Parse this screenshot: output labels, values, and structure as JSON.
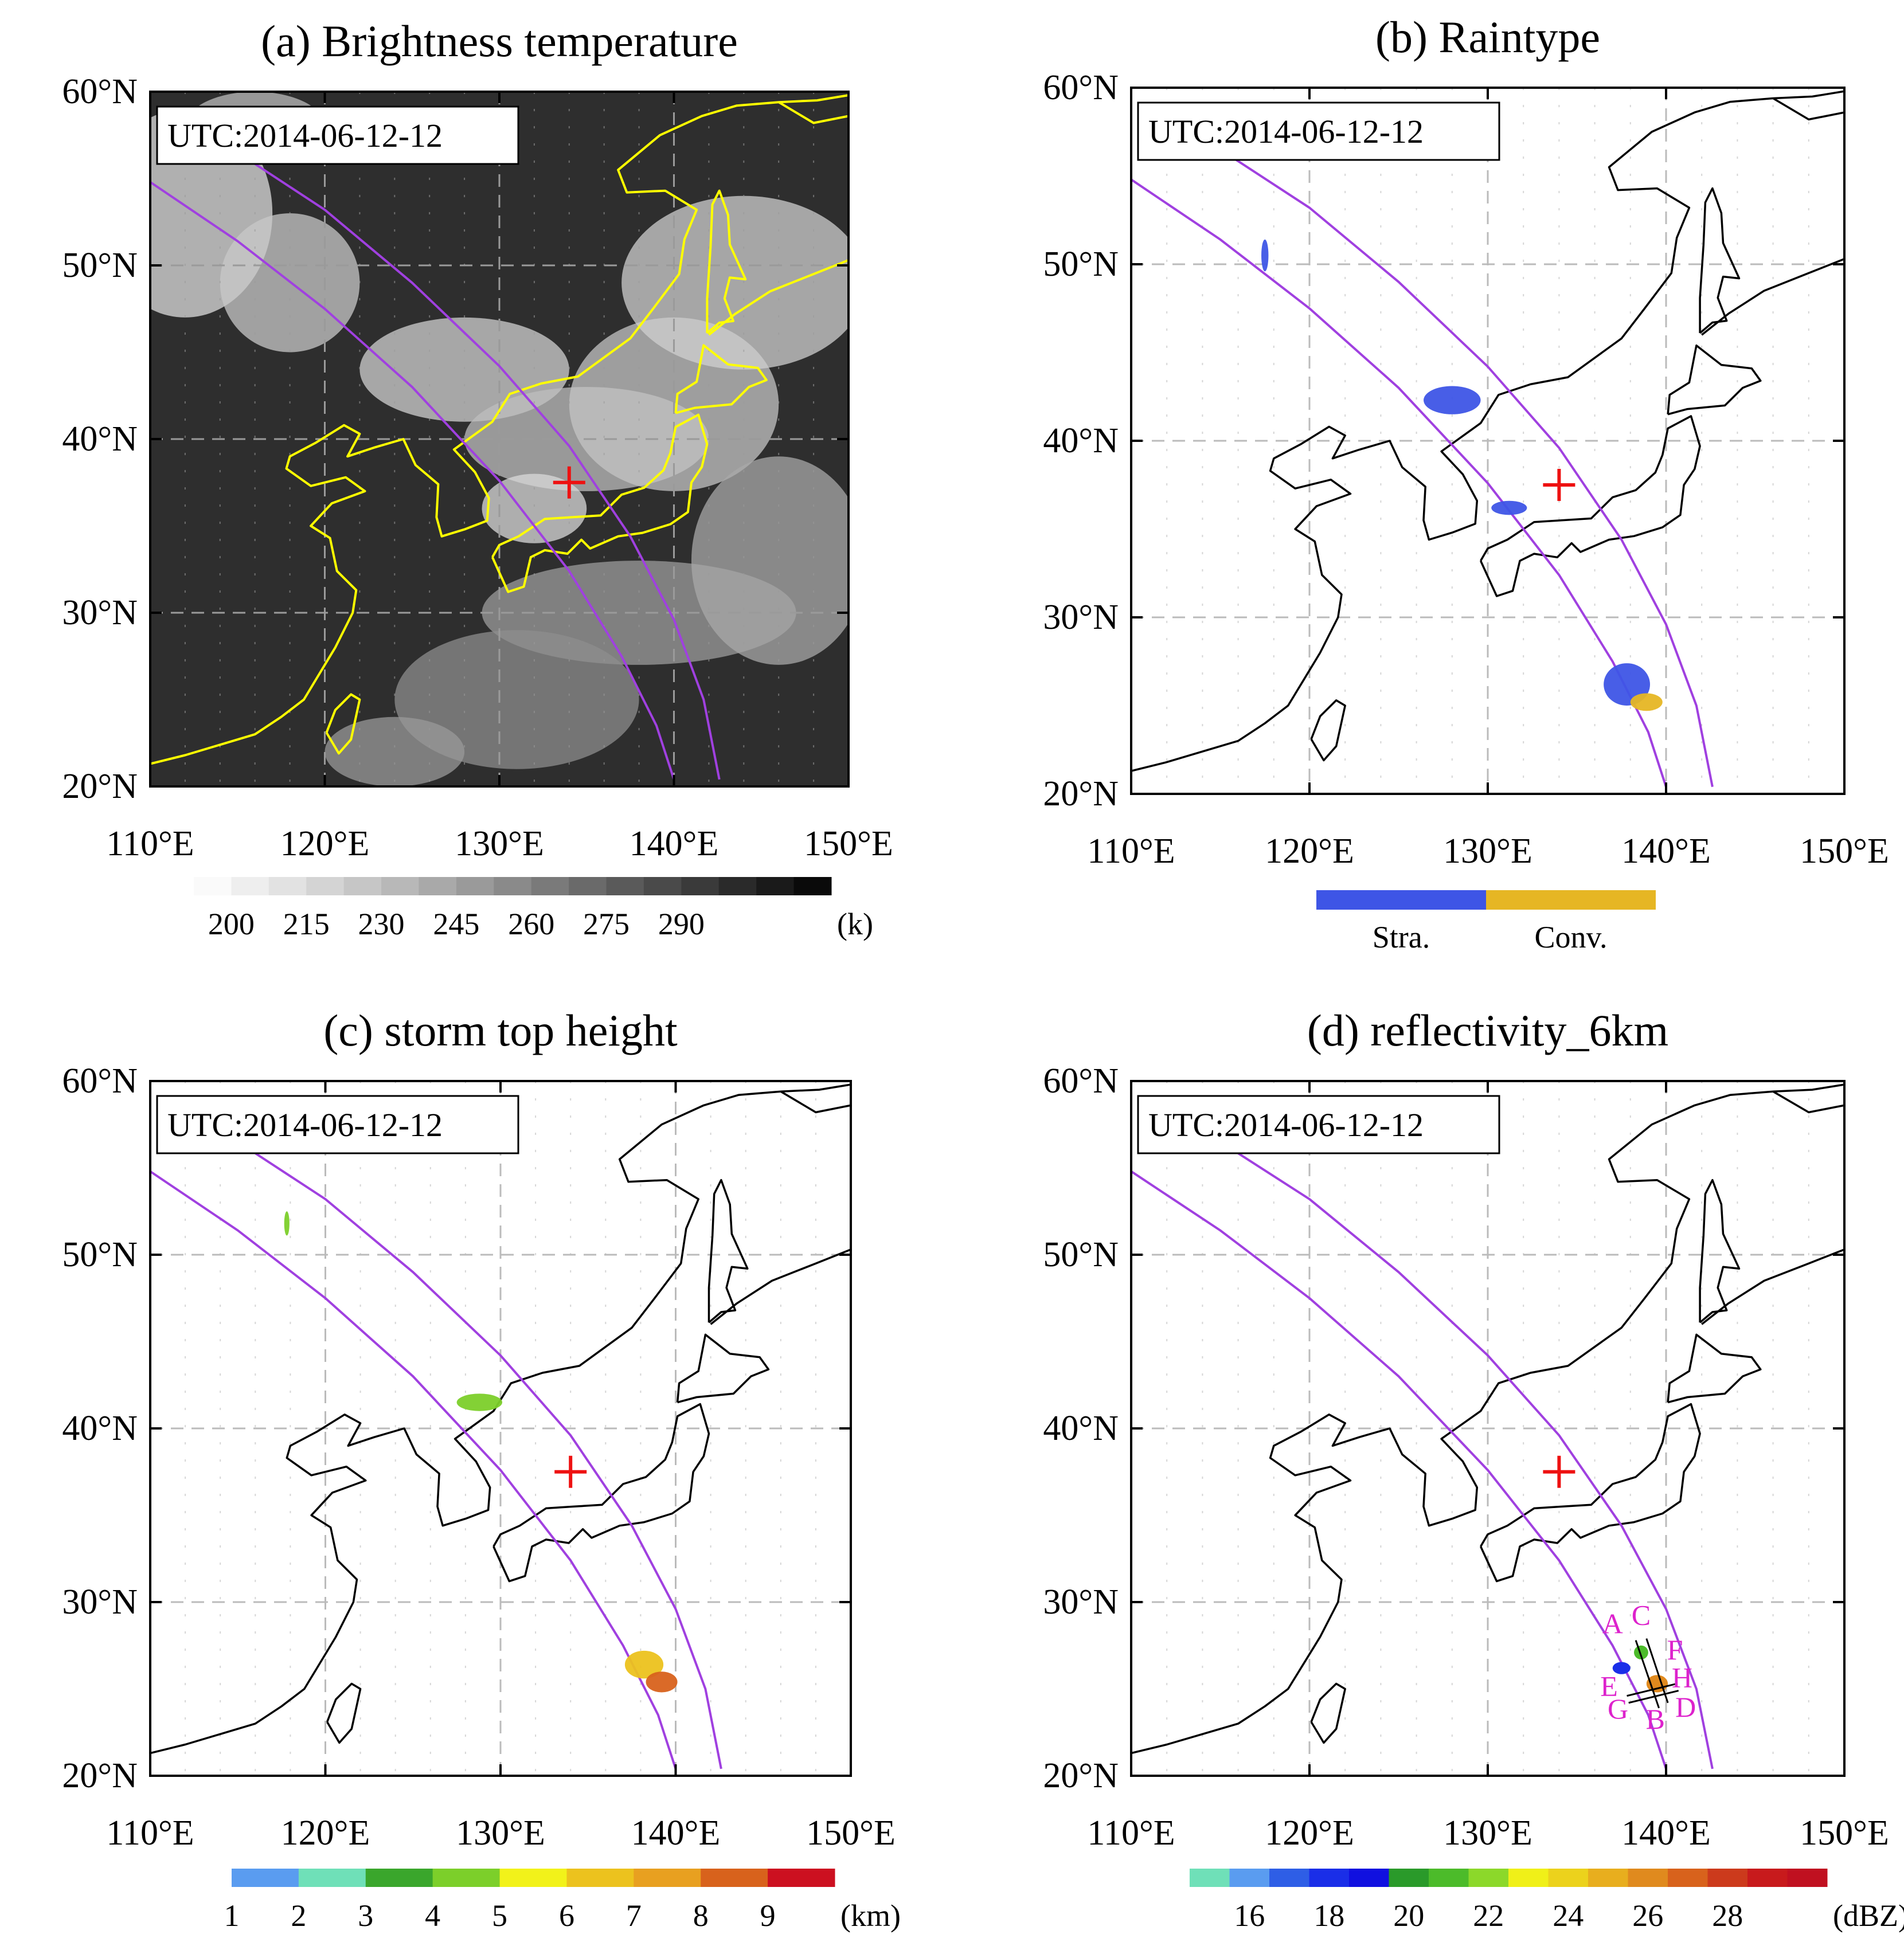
{
  "chart_data": [
    {
      "type": "heatmap",
      "title": "(a) Brightness temperature",
      "timestamp": "UTC:2014-06-12-12",
      "x_ticks": [
        "110°E",
        "120°E",
        "130°E",
        "140°E",
        "150°E"
      ],
      "y_ticks": [
        "60°N",
        "50°N",
        "40°N",
        "30°N",
        "20°N"
      ],
      "xlim": [
        110,
        150
      ],
      "ylim": [
        20,
        60
      ],
      "marker": {
        "lon": 134,
        "lat": 37.5,
        "symbol": "+",
        "color": "#ee1111"
      },
      "colorbar": {
        "ticks": [
          "200",
          "215",
          "230",
          "245",
          "260",
          "275",
          "290"
        ],
        "unit": "(k)",
        "colors": [
          "#fafafa",
          "#eeeeee",
          "#e2e2e2",
          "#d4d4d4",
          "#c6c6c6",
          "#b8b8b8",
          "#a9a9a9",
          "#9a9a9a",
          "#8a8a8a",
          "#7a7a7a",
          "#6a6a6a",
          "#5a5a5a",
          "#4a4a4a",
          "#3a3a3a",
          "#2a2a2a",
          "#1a1a1a",
          "#0a0a0a"
        ]
      },
      "coastline_color": "#ffff00"
    },
    {
      "type": "heatmap",
      "title": "(b) Raintype",
      "timestamp": "UTC:2014-06-12-12",
      "x_ticks": [
        "110°E",
        "120°E",
        "130°E",
        "140°E",
        "150°E"
      ],
      "y_ticks": [
        "60°N",
        "50°N",
        "40°N",
        "30°N",
        "20°N"
      ],
      "xlim": [
        110,
        150
      ],
      "ylim": [
        20,
        60
      ],
      "marker": {
        "lon": 134,
        "lat": 37.5,
        "symbol": "+",
        "color": "#ee1111"
      },
      "categories": [
        "Stra.",
        "Conv."
      ],
      "category_colors": [
        "#3e55e6",
        "#e6b624"
      ],
      "coastline_color": "#000000"
    },
    {
      "type": "heatmap",
      "title": "(c) storm top height",
      "timestamp": "UTC:2014-06-12-12",
      "x_ticks": [
        "110°E",
        "120°E",
        "130°E",
        "140°E",
        "150°E"
      ],
      "y_ticks": [
        "60°N",
        "50°N",
        "40°N",
        "30°N",
        "20°N"
      ],
      "xlim": [
        110,
        150
      ],
      "ylim": [
        20,
        60
      ],
      "marker": {
        "lon": 134,
        "lat": 37.5,
        "symbol": "+",
        "color": "#ee1111"
      },
      "colorbar": {
        "ticks": [
          "1",
          "2",
          "3",
          "4",
          "5",
          "6",
          "7",
          "8",
          "9"
        ],
        "unit": "(km)",
        "colors": [
          "#5a9cf0",
          "#6fe0b8",
          "#3aa62c",
          "#7ccf2a",
          "#f2f21a",
          "#ecc21e",
          "#e8a020",
          "#d8621c",
          "#cc1020"
        ]
      },
      "coastline_color": "#000000"
    },
    {
      "type": "heatmap",
      "title": "(d) reflectivity_6km",
      "timestamp": "UTC:2014-06-12-12",
      "x_ticks": [
        "110°E",
        "120°E",
        "130°E",
        "140°E",
        "150°E"
      ],
      "y_ticks": [
        "60°N",
        "50°N",
        "40°N",
        "30°N",
        "20°N"
      ],
      "xlim": [
        110,
        150
      ],
      "ylim": [
        20,
        60
      ],
      "marker": {
        "lon": 134,
        "lat": 37.5,
        "symbol": "+",
        "color": "#ee1111"
      },
      "section_labels": [
        "A",
        "C",
        "F",
        "H",
        "E",
        "G",
        "B",
        "D"
      ],
      "label_color": "#dd22cc",
      "colorbar": {
        "ticks": [
          "16",
          "18",
          "20",
          "22",
          "24",
          "26",
          "28"
        ],
        "unit": "(dBZ)",
        "colors": [
          "#6fe0b8",
          "#5a9cf0",
          "#2e5ee6",
          "#1a2ee8",
          "#1010e0",
          "#2a9a2a",
          "#4cbb2a",
          "#8cd82a",
          "#f0f018",
          "#ecd21c",
          "#e8ae1e",
          "#e08a1e",
          "#d8621c",
          "#cc3a1c",
          "#c81a1c",
          "#c01020"
        ]
      },
      "coastline_color": "#000000"
    }
  ]
}
